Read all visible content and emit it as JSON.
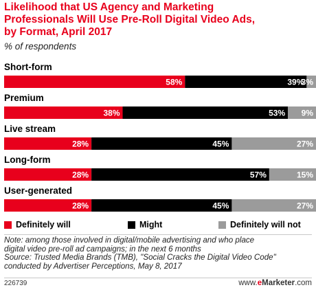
{
  "title_lines": [
    "Likelihood that US Agency and Marketing",
    "Professionals Will Use Pre-Roll Digital Video Ads,",
    "by Format, April 2017"
  ],
  "subtitle": "% of respondents",
  "chart_data": {
    "type": "bar",
    "orientation": "horizontal",
    "stacked": true,
    "unit": "%",
    "categories": [
      "Short-form",
      "Premium",
      "Live stream",
      "Long-form",
      "User-generated"
    ],
    "series": [
      {
        "name": "Definitely will",
        "color": "#e8001c",
        "values": [
          58,
          38,
          28,
          28,
          28
        ]
      },
      {
        "name": "Might",
        "color": "#000000",
        "values": [
          39,
          53,
          45,
          57,
          45
        ]
      },
      {
        "name": "Definitely will not",
        "color": "#9b9b9b",
        "values": [
          3,
          9,
          27,
          15,
          27
        ]
      }
    ],
    "data_labels": [
      [
        "58%",
        "39%",
        "3%"
      ],
      [
        "38%",
        "53%",
        "9%"
      ],
      [
        "28%",
        "45%",
        "27%"
      ],
      [
        "28%",
        "57%",
        "15%"
      ],
      [
        "28%",
        "45%",
        "27%"
      ]
    ],
    "xlim": [
      0,
      100
    ],
    "grid": false,
    "legend_position": "bottom"
  },
  "legend": [
    {
      "label": "Definitely will",
      "color": "#e8001c"
    },
    {
      "label": "Might",
      "color": "#000000"
    },
    {
      "label": "Definitely will not",
      "color": "#9b9b9b"
    }
  ],
  "notes": [
    "Note: among those involved in digital/mobile advertising and who place",
    "digital video pre-roll ad campaigns; in the next 6 months",
    "Source: Trusted Media Brands (TMB), \"Social Cracks the Digital Video Code\"",
    "conducted by Advertiser Perceptions, May 8, 2017"
  ],
  "chart_id": "226739",
  "brand": {
    "prefix": "www.",
    "e": "e",
    "rest": "Marketer",
    "suffix": ".com"
  }
}
